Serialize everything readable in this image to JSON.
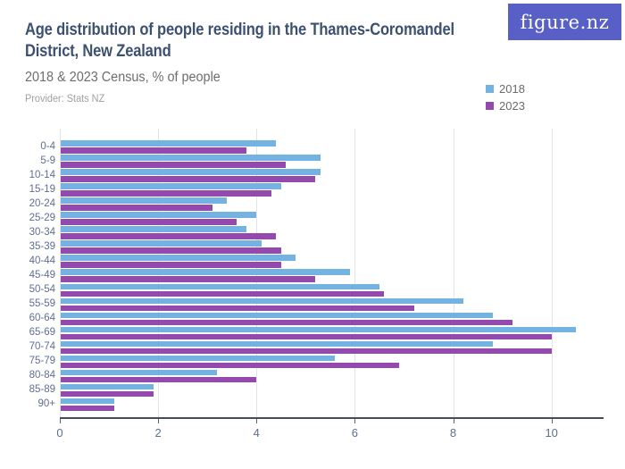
{
  "header": {
    "title_line1": "Age distribution of people residing in the Thames-Coromandel",
    "title_line2": "District, New Zealand",
    "subtitle": "2018 & 2023 Census, % of people",
    "provider": "Provider: Stats NZ"
  },
  "logo": {
    "text": "figure.nz",
    "bg_color": "#585fc6",
    "text_color": "#ffffff"
  },
  "legend": {
    "items": [
      {
        "label": "2018",
        "color": "#74b2e2"
      },
      {
        "label": "2023",
        "color": "#9449ad"
      }
    ]
  },
  "chart_data": {
    "type": "bar",
    "orientation": "horizontal",
    "title": "Age distribution of people residing in the Thames-Coromandel District, New Zealand",
    "subtitle": "2018 & 2023 Census, % of people",
    "provider": "Stats NZ",
    "categories": [
      "0-4",
      "5-9",
      "10-14",
      "15-19",
      "20-24",
      "25-29",
      "30-34",
      "35-39",
      "40-44",
      "45-49",
      "50-54",
      "55-59",
      "60-64",
      "65-69",
      "70-74",
      "75-79",
      "80-84",
      "85-89",
      "90+"
    ],
    "series": [
      {
        "name": "2018",
        "color": "#74b2e2",
        "values": [
          4.4,
          5.3,
          5.3,
          4.5,
          3.4,
          4.0,
          3.8,
          4.1,
          4.8,
          5.9,
          6.5,
          8.2,
          8.8,
          10.5,
          8.8,
          5.6,
          3.2,
          1.9,
          1.1
        ]
      },
      {
        "name": "2023",
        "color": "#9449ad",
        "values": [
          3.8,
          4.6,
          5.2,
          4.3,
          3.1,
          3.6,
          4.4,
          4.5,
          4.5,
          5.2,
          6.6,
          7.2,
          9.2,
          10.0,
          10.0,
          6.9,
          4.0,
          1.9,
          1.1
        ]
      }
    ],
    "xlabel": "",
    "ylabel": "",
    "x_axis": {
      "ticks": [
        0,
        2,
        4,
        6,
        8,
        10
      ],
      "min": 0,
      "max": 11.05,
      "unit": "% of people"
    },
    "grid": true,
    "legend_position": "top-right"
  }
}
